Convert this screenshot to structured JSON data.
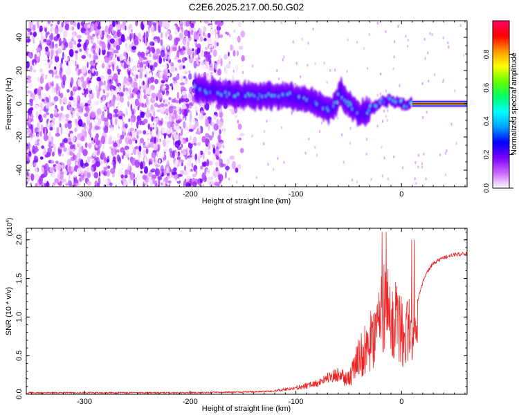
{
  "title": "C2E6.2025.217.00.50.G02",
  "chart_data": [
    {
      "type": "heatmap",
      "xlabel": "Height of straight line (km)",
      "ylabel": "Frequency (Hz)",
      "xlim": [
        -355,
        62
      ],
      "ylim": [
        -50,
        50
      ],
      "x_ticks": [
        -300,
        -200,
        -100,
        0
      ],
      "y_ticks": [
        -40,
        -20,
        0,
        20,
        40
      ],
      "colorbar": {
        "label": "Normalized spectral amplitude",
        "range": [
          0,
          1
        ],
        "ticks": [
          "0.0",
          "0.2",
          "0.4",
          "0.6",
          "0.8"
        ],
        "colors": [
          "#ffffff",
          "#cc66ff",
          "#7a00ff",
          "#0000ff",
          "#00a0ff",
          "#00ffff",
          "#00ff66",
          "#66ff00",
          "#ffff00",
          "#ff9900",
          "#ff0000",
          "#ff0066"
        ]
      },
      "noise_region_km": [
        -355,
        -170
      ],
      "signal_track": [
        {
          "x": -195,
          "y": 9
        },
        {
          "x": -180,
          "y": 7
        },
        {
          "x": -160,
          "y": 6
        },
        {
          "x": -140,
          "y": 5
        },
        {
          "x": -120,
          "y": 5
        },
        {
          "x": -100,
          "y": 4
        },
        {
          "x": -85,
          "y": 2
        },
        {
          "x": -75,
          "y": -2
        },
        {
          "x": -65,
          "y": -4
        },
        {
          "x": -58,
          "y": 7
        },
        {
          "x": -50,
          "y": 0
        },
        {
          "x": -40,
          "y": -6
        },
        {
          "x": -30,
          "y": -4
        },
        {
          "x": -20,
          "y": 1
        },
        {
          "x": -10,
          "y": 2
        },
        {
          "x": 0,
          "y": 0
        },
        {
          "x": 10,
          "y": 0
        },
        {
          "x": 30,
          "y": 0
        },
        {
          "x": 62,
          "y": 0
        }
      ],
      "constant_band": {
        "x_start": 10,
        "x_end": 62,
        "y": 0
      }
    },
    {
      "type": "line",
      "xlabel": "Height of straight line (km)",
      "ylabel": "SNR (10 * v/v)",
      "y_multiplier": "(x10^4)",
      "xlim": [
        -355,
        62
      ],
      "ylim": [
        0,
        2.15
      ],
      "x_ticks": [
        -300,
        -200,
        -100,
        0
      ],
      "y_ticks": [
        "0.0",
        "0.5",
        "1.0",
        "1.5",
        "2.0"
      ],
      "color": "#ee2222",
      "series": [
        {
          "x": [
            -355,
            -300,
            -250,
            -200,
            -150,
            -120,
            -100,
            -80,
            -70,
            -60,
            -50,
            -40,
            -35,
            -30,
            -25,
            -20,
            -15,
            -10,
            -5,
            0,
            5,
            10,
            15,
            20,
            25,
            30,
            40,
            50,
            62
          ],
          "y": [
            0.02,
            0.02,
            0.02,
            0.02,
            0.03,
            0.04,
            0.07,
            0.12,
            0.18,
            0.22,
            0.2,
            0.5,
            0.6,
            0.75,
            0.8,
            1.0,
            1.3,
            0.9,
            1.1,
            0.9,
            0.85,
            0.8,
            1.2,
            1.45,
            1.6,
            1.7,
            1.77,
            1.81,
            1.82
          ]
        }
      ]
    }
  ]
}
